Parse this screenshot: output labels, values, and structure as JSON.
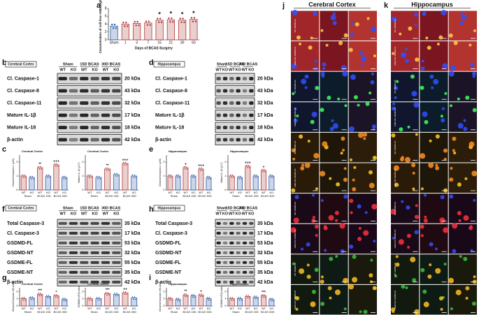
{
  "panel_labels": [
    "a",
    "b",
    "c",
    "d",
    "e",
    "f",
    "g",
    "h",
    "i",
    "j",
    "k"
  ],
  "blots": [
    {
      "tag": "Cerebral Cortex",
      "groups": [
        "Sham",
        "15D BCAS",
        "30D BCAS"
      ],
      "lanes": [
        "WT",
        "KO",
        "WT",
        "KO",
        "WT",
        "KO"
      ],
      "rows": [
        {
          "label": "Cl. Caspase-1",
          "kda": "20 kDa"
        },
        {
          "label": "Cl. Caspase-8",
          "kda": "43 kDa"
        },
        {
          "label": "Cl. Caspase-11",
          "kda": "32 kDa"
        },
        {
          "label": "Mature IL-1β",
          "kda": "17 kDa"
        },
        {
          "label": "Mature IL-18",
          "kda": "18 kDa"
        },
        {
          "label": "β-actin",
          "kda": "42 kDa"
        }
      ]
    },
    {
      "tag": "Hippocampus",
      "groups": [
        "Sham",
        "15D BCAS",
        "30D BCAS"
      ],
      "lanes": [
        "WT",
        "KO",
        "WT",
        "KO",
        "WT",
        "KO"
      ],
      "rows": [
        {
          "label": "Cl. Caspase-1",
          "kda": "20 kDa"
        },
        {
          "label": "Cl. Caspase-8",
          "kda": "43 kDa"
        },
        {
          "label": "Cl. Caspase-11",
          "kda": "32 kDa"
        },
        {
          "label": "Mature IL-1β",
          "kda": "17 kDa"
        },
        {
          "label": "Mature IL-18",
          "kda": "18 kDa"
        },
        {
          "label": "β-actin",
          "kda": "42 kDa"
        }
      ]
    },
    {
      "tag": "Cerebral Cortex",
      "groups": [
        "Sham",
        "15D BCAS",
        "30D BCAS"
      ],
      "lanes": [
        "WT",
        "KO",
        "WT",
        "KO",
        "WT",
        "KO"
      ],
      "rows": [
        {
          "label": "Total Caspase-3",
          "kda": "35 kDa"
        },
        {
          "label": "Cl. Caspase-3",
          "kda": "17 kDa"
        },
        {
          "label": "GSDMD-FL",
          "kda": "53 kDa"
        },
        {
          "label": "GSDMD-NT",
          "kda": "32 kDa"
        },
        {
          "label": "GSDME-FL",
          "kda": "55 kDa"
        },
        {
          "label": "GSDME-NT",
          "kda": "35 kDa"
        },
        {
          "label": "β-actin",
          "kda": "42 kDa"
        }
      ]
    },
    {
      "tag": "Hippocampus",
      "groups": [
        "Sham",
        "15D BCAS",
        "30D BCAS"
      ],
      "lanes": [
        "WT",
        "KO",
        "WT",
        "KO",
        "WT",
        "KO"
      ],
      "rows": [
        {
          "label": "Total Caspase-3",
          "kda": "35 kDa"
        },
        {
          "label": "Cl. Caspase-3",
          "kda": "17 kDa"
        },
        {
          "label": "GSDMD-FL",
          "kda": "53 kDa"
        },
        {
          "label": "GSDMD-NT",
          "kda": "32 kDa"
        },
        {
          "label": "GSDME-FL",
          "kda": "55 kDa"
        },
        {
          "label": "GSDME-NT",
          "kda": "35 kDa"
        },
        {
          "label": "β-actin",
          "kda": "42 kDa"
        }
      ]
    }
  ],
  "chart_data": [
    {
      "type": "bar",
      "y_label": "Concentration of cell-free AIM2 (ng/mL)",
      "x_label": "Days of BCAS Surgery",
      "categories": [
        "Sham",
        "1",
        "3",
        "7",
        "15",
        "21",
        "30",
        "60"
      ],
      "values": [
        3.5,
        4.0,
        4.2,
        4.3,
        5.0,
        5.1,
        5.0,
        5.2
      ],
      "significance": [
        null,
        null,
        null,
        null,
        "*",
        "*",
        "*",
        "*"
      ],
      "colors": [
        "#2f5aa8",
        "#b03a3a",
        "#b03a3a",
        "#b03a3a",
        "#b03a3a",
        "#b03a3a",
        "#b03a3a",
        "#b03a3a"
      ],
      "ylim": [
        0,
        8
      ],
      "yticks": [
        0,
        2,
        4,
        6,
        8
      ]
    },
    {
      "type": "bar",
      "title": "Cerebral Cortex",
      "y_label": "Cleaved Caspase-1 (p20)",
      "categories": [
        "WT",
        "KO",
        "WT",
        "KO",
        "WT",
        "KO"
      ],
      "groups": [
        "Sham",
        "BCAS 15D",
        "BCAS 30D"
      ],
      "values": [
        1.0,
        0.9,
        1.6,
        1.0,
        1.8,
        0.9
      ],
      "significance": [
        null,
        null,
        "**",
        null,
        "+++",
        null
      ],
      "colors": [
        "#b03a3a",
        "#2f5aa8",
        "#b03a3a",
        "#2f5aa8",
        "#b03a3a",
        "#2f5aa8"
      ],
      "ylim": [
        0,
        2.5
      ],
      "yticks": [
        0,
        1,
        2
      ]
    },
    {
      "type": "bar",
      "title": "Cerebral Cortex",
      "y_label": "Mature IL-1β (p17)",
      "categories": [
        "WT",
        "KO",
        "WT",
        "KO",
        "WT",
        "KO"
      ],
      "groups": [
        "Sham",
        "BCAS 15D",
        "BCAS 30D"
      ],
      "values": [
        1.0,
        0.9,
        1.5,
        1.1,
        1.9,
        1.0
      ],
      "significance": [
        null,
        null,
        "**",
        null,
        "+++",
        null
      ],
      "colors": [
        "#b03a3a",
        "#2f5aa8",
        "#b03a3a",
        "#2f5aa8",
        "#b03a3a",
        "#2f5aa8"
      ],
      "ylim": [
        0,
        2.5
      ],
      "yticks": [
        0,
        1,
        2
      ]
    },
    {
      "type": "bar",
      "title": "Hippocampus",
      "y_label": "Cleaved Caspase-1 (p20)",
      "categories": [
        "WT",
        "KO",
        "WT",
        "KO",
        "WT",
        "KO"
      ],
      "groups": [
        "Sham",
        "BCAS 15D",
        "BCAS 30D"
      ],
      "values": [
        1.0,
        1.0,
        1.6,
        1.0,
        1.5,
        0.9
      ],
      "significance": [
        null,
        null,
        "+",
        null,
        "+++",
        null
      ],
      "colors": [
        "#b03a3a",
        "#2f5aa8",
        "#b03a3a",
        "#2f5aa8",
        "#b03a3a",
        "#2f5aa8"
      ],
      "ylim": [
        0,
        2.5
      ],
      "yticks": [
        0,
        1,
        2
      ]
    },
    {
      "type": "bar",
      "title": "Hippocampus",
      "y_label": "Mature IL-1β (p17)",
      "categories": [
        "WT",
        "KO",
        "WT",
        "KO",
        "WT",
        "KO"
      ],
      "groups": [
        "Sham",
        "BCAS 15D",
        "BCAS 30D"
      ],
      "values": [
        1.0,
        0.9,
        1.7,
        1.0,
        1.4,
        1.0
      ],
      "significance": [
        null,
        null,
        "+++",
        null,
        "+",
        null
      ],
      "colors": [
        "#b03a3a",
        "#2f5aa8",
        "#b03a3a",
        "#2f5aa8",
        "#b03a3a",
        "#2f5aa8"
      ],
      "ylim": [
        0,
        2.5
      ],
      "yticks": [
        0,
        1,
        2
      ]
    },
    {
      "type": "bar",
      "title": "Cerebral Cortex",
      "y_label": "Cleaved Caspase-3/β-actin",
      "categories": [
        "WT",
        "KO",
        "WT",
        "KO",
        "WT",
        "KO"
      ],
      "groups": [
        "Sham",
        "BCAS 15D",
        "BCAS 30D"
      ],
      "values": [
        1.0,
        1.1,
        1.6,
        1.3,
        1.4,
        0.9
      ],
      "significance": [
        null,
        null,
        "***",
        null,
        "*",
        null
      ],
      "colors": [
        "#b03a3a",
        "#2f5aa8",
        "#b03a3a",
        "#2f5aa8",
        "#b03a3a",
        "#2f5aa8"
      ],
      "ylim": [
        0,
        2.5
      ],
      "yticks": [
        0,
        1,
        2
      ]
    },
    {
      "type": "bar",
      "title": "Cerebral Cortex",
      "y_label": "GSDMD-NT/β-actin",
      "categories": [
        "WT",
        "KO",
        "WT",
        "KO",
        "WT",
        "KO"
      ],
      "groups": [
        "Sham",
        "BCAS 15D",
        "BCAS 30D"
      ],
      "values": [
        1.0,
        1.0,
        1.7,
        1.6,
        1.8,
        1.1
      ],
      "significance": [
        null,
        null,
        "***",
        null,
        "++",
        null
      ],
      "colors": [
        "#b03a3a",
        "#2f5aa8",
        "#b03a3a",
        "#2f5aa8",
        "#b03a3a",
        "#2f5aa8"
      ],
      "ylim": [
        0,
        2.5
      ],
      "yticks": [
        0,
        1,
        2
      ]
    },
    {
      "type": "bar",
      "title": "Hippocampus",
      "y_label": "Cleaved Caspase-3/β-actin",
      "categories": [
        "WT",
        "KO",
        "WT",
        "KO",
        "WT",
        "KO"
      ],
      "groups": [
        "Sham",
        "BCAS 15D",
        "BCAS 30D"
      ],
      "values": [
        1.0,
        0.9,
        1.5,
        1.4,
        1.5,
        1.0
      ],
      "significance": [
        null,
        null,
        "**",
        null,
        "+",
        null
      ],
      "colors": [
        "#b03a3a",
        "#2f5aa8",
        "#b03a3a",
        "#2f5aa8",
        "#b03a3a",
        "#2f5aa8"
      ],
      "ylim": [
        0,
        2.5
      ],
      "yticks": [
        0,
        1,
        2
      ]
    },
    {
      "type": "bar",
      "title": "Hippocampus",
      "y_label": "GSDMD-NT/β-actin",
      "categories": [
        "WT",
        "KO",
        "WT",
        "KO",
        "WT",
        "KO"
      ],
      "groups": [
        "Sham",
        "BCAS 15D",
        "BCAS 30D"
      ],
      "values": [
        1.0,
        1.0,
        1.3,
        1.2,
        1.4,
        0.9
      ],
      "significance": [
        null,
        null,
        null,
        null,
        "***",
        null
      ],
      "colors": [
        "#b03a3a",
        "#2f5aa8",
        "#b03a3a",
        "#2f5aa8",
        "#b03a3a",
        "#2f5aa8"
      ],
      "ylim": [
        0,
        2.5
      ],
      "yticks": [
        0,
        1,
        2
      ]
    }
  ],
  "images": [
    {
      "title": "Cerebral Cortex",
      "row_labels": [
        "WT 30DBCAS",
        "AIM2 KO 30DBCAS",
        "WT 30DBCAS",
        "AIM2 KO 30DBCAS",
        "WT 30DBCAS",
        "AIM2 KO 30DBCAS",
        "WT 30DBCAS",
        "AIM2 KO 30DBCAS",
        "WT 30DBCAS",
        "AIM2 KO 30DBCAS"
      ]
    },
    {
      "title": "Hippocampus",
      "row_labels": [
        "WT 30DBCAS",
        "AIM2 KO 30DBCAS",
        "WT 30DBCAS",
        "AIM2 KO 30DBCAS",
        "WT 30DBCAS",
        "AIM2 KO 30DBCAS",
        "WT 30DBCAS",
        "AIM2 KO 30DBCAS",
        "WT 30DBCAS",
        "AIM2 KO 30DBCAS"
      ]
    }
  ]
}
